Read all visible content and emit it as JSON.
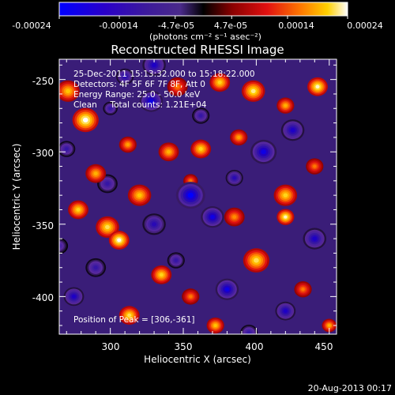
{
  "chart_data": {
    "type": "heatmap",
    "title": "Reconstructed RHESSI Image",
    "xlabel": "Heliocentric X (arcsec)",
    "ylabel": "Heliocentric Y (arcsec)",
    "xlim": [
      265,
      455
    ],
    "ylim": [
      -426,
      -236
    ],
    "x_ticks": [
      300,
      350,
      400,
      450
    ],
    "x_tick_labels": [
      "300",
      "350",
      "400",
      "450"
    ],
    "y_ticks": [
      -250,
      -300,
      -350,
      -400
    ],
    "y_tick_labels": [
      "-250",
      "-300",
      "-350",
      "-400"
    ],
    "colorbar": {
      "range": [
        -0.00024,
        0.00024
      ],
      "tick_labels": [
        "-0.00024",
        "-0.00014",
        "-4.7e-05",
        "4.7e-05",
        "0.00014",
        "0.00024"
      ],
      "unit_label": "(photons cm⁻² s⁻¹ asec⁻²)",
      "colors": [
        "#0000ff",
        "#2000c0",
        "#3a1aa0",
        "#5a2aa0",
        "#000000",
        "#8a0000",
        "#e01010",
        "#ff7a00",
        "#ffd000",
        "#ffffff"
      ]
    },
    "annotations": [
      "25-Dec-2011 15:13:32.000 to 15:18:22.000",
      "Detectors: 4F 5F 6F 7F 8F, Att 0",
      "Energy Range: 25.0 - 50.0 keV",
      "Clean     Total counts: 1.21E+04"
    ],
    "peak_label": "Position of Peak = [306,-361]",
    "blobs": [
      {
        "x": 283,
        "y": -278,
        "v": 1.0,
        "r": 9
      },
      {
        "x": 271,
        "y": -258,
        "v": 0.75,
        "r": 8
      },
      {
        "x": 306,
        "y": -361,
        "v": 1.0,
        "r": 7
      },
      {
        "x": 298,
        "y": -352,
        "v": 0.85,
        "r": 8
      },
      {
        "x": 346,
        "y": -255,
        "v": 0.55,
        "r": 7
      },
      {
        "x": 375,
        "y": -252,
        "v": 0.8,
        "r": 7
      },
      {
        "x": 398,
        "y": -258,
        "v": 0.9,
        "r": 8
      },
      {
        "x": 442,
        "y": -255,
        "v": 0.95,
        "r": 7
      },
      {
        "x": 420,
        "y": -268,
        "v": 0.7,
        "r": 6
      },
      {
        "x": 340,
        "y": -300,
        "v": 0.7,
        "r": 7
      },
      {
        "x": 362,
        "y": -298,
        "v": 0.8,
        "r": 7
      },
      {
        "x": 388,
        "y": -290,
        "v": 0.65,
        "r": 6
      },
      {
        "x": 312,
        "y": -295,
        "v": 0.65,
        "r": 6
      },
      {
        "x": 420,
        "y": -330,
        "v": 0.8,
        "r": 8
      },
      {
        "x": 440,
        "y": -310,
        "v": 0.55,
        "r": 6
      },
      {
        "x": 290,
        "y": -315,
        "v": 0.7,
        "r": 7
      },
      {
        "x": 278,
        "y": -340,
        "v": 0.8,
        "r": 7
      },
      {
        "x": 320,
        "y": -330,
        "v": 0.75,
        "r": 8
      },
      {
        "x": 385,
        "y": -345,
        "v": 0.6,
        "r": 7
      },
      {
        "x": 420,
        "y": -345,
        "v": 0.95,
        "r": 6
      },
      {
        "x": 400,
        "y": -375,
        "v": 0.85,
        "r": 9
      },
      {
        "x": 335,
        "y": -385,
        "v": 0.8,
        "r": 7
      },
      {
        "x": 355,
        "y": -400,
        "v": 0.55,
        "r": 6
      },
      {
        "x": 313,
        "y": -413,
        "v": 0.85,
        "r": 7
      },
      {
        "x": 432,
        "y": -395,
        "v": 0.55,
        "r": 6
      },
      {
        "x": 372,
        "y": -420,
        "v": 0.75,
        "r": 6
      },
      {
        "x": 450,
        "y": -420,
        "v": 0.7,
        "r": 5
      },
      {
        "x": 355,
        "y": -320,
        "v": 0.55,
        "r": 5
      },
      {
        "x": 355,
        "y": -330,
        "v": -1.0,
        "r": 10
      },
      {
        "x": 370,
        "y": -345,
        "v": -0.9,
        "r": 8
      },
      {
        "x": 330,
        "y": -350,
        "v": -0.7,
        "r": 8
      },
      {
        "x": 405,
        "y": -300,
        "v": -0.9,
        "r": 9
      },
      {
        "x": 425,
        "y": -285,
        "v": -0.8,
        "r": 8
      },
      {
        "x": 328,
        "y": -265,
        "v": -0.9,
        "r": 8
      },
      {
        "x": 298,
        "y": -322,
        "v": -0.6,
        "r": 7
      },
      {
        "x": 330,
        "y": -240,
        "v": -0.8,
        "r": 8
      },
      {
        "x": 310,
        "y": -248,
        "v": -0.7,
        "r": 6
      },
      {
        "x": 440,
        "y": -360,
        "v": -0.8,
        "r": 8
      },
      {
        "x": 380,
        "y": -395,
        "v": -0.9,
        "r": 8
      },
      {
        "x": 420,
        "y": -410,
        "v": -0.8,
        "r": 7
      },
      {
        "x": 275,
        "y": -400,
        "v": -0.8,
        "r": 7
      },
      {
        "x": 290,
        "y": -380,
        "v": -0.6,
        "r": 7
      },
      {
        "x": 345,
        "y": -375,
        "v": -0.6,
        "r": 6
      },
      {
        "x": 270,
        "y": -298,
        "v": -0.6,
        "r": 6
      },
      {
        "x": 300,
        "y": -270,
        "v": -0.6,
        "r": 5
      },
      {
        "x": 362,
        "y": -275,
        "v": -0.6,
        "r": 6
      },
      {
        "x": 385,
        "y": -318,
        "v": -0.7,
        "r": 6
      },
      {
        "x": 265,
        "y": -365,
        "v": -0.5,
        "r": 6
      },
      {
        "x": 395,
        "y": -425,
        "v": -0.6,
        "r": 6
      }
    ]
  },
  "footer_date": "20-Aug-2013 00:17"
}
